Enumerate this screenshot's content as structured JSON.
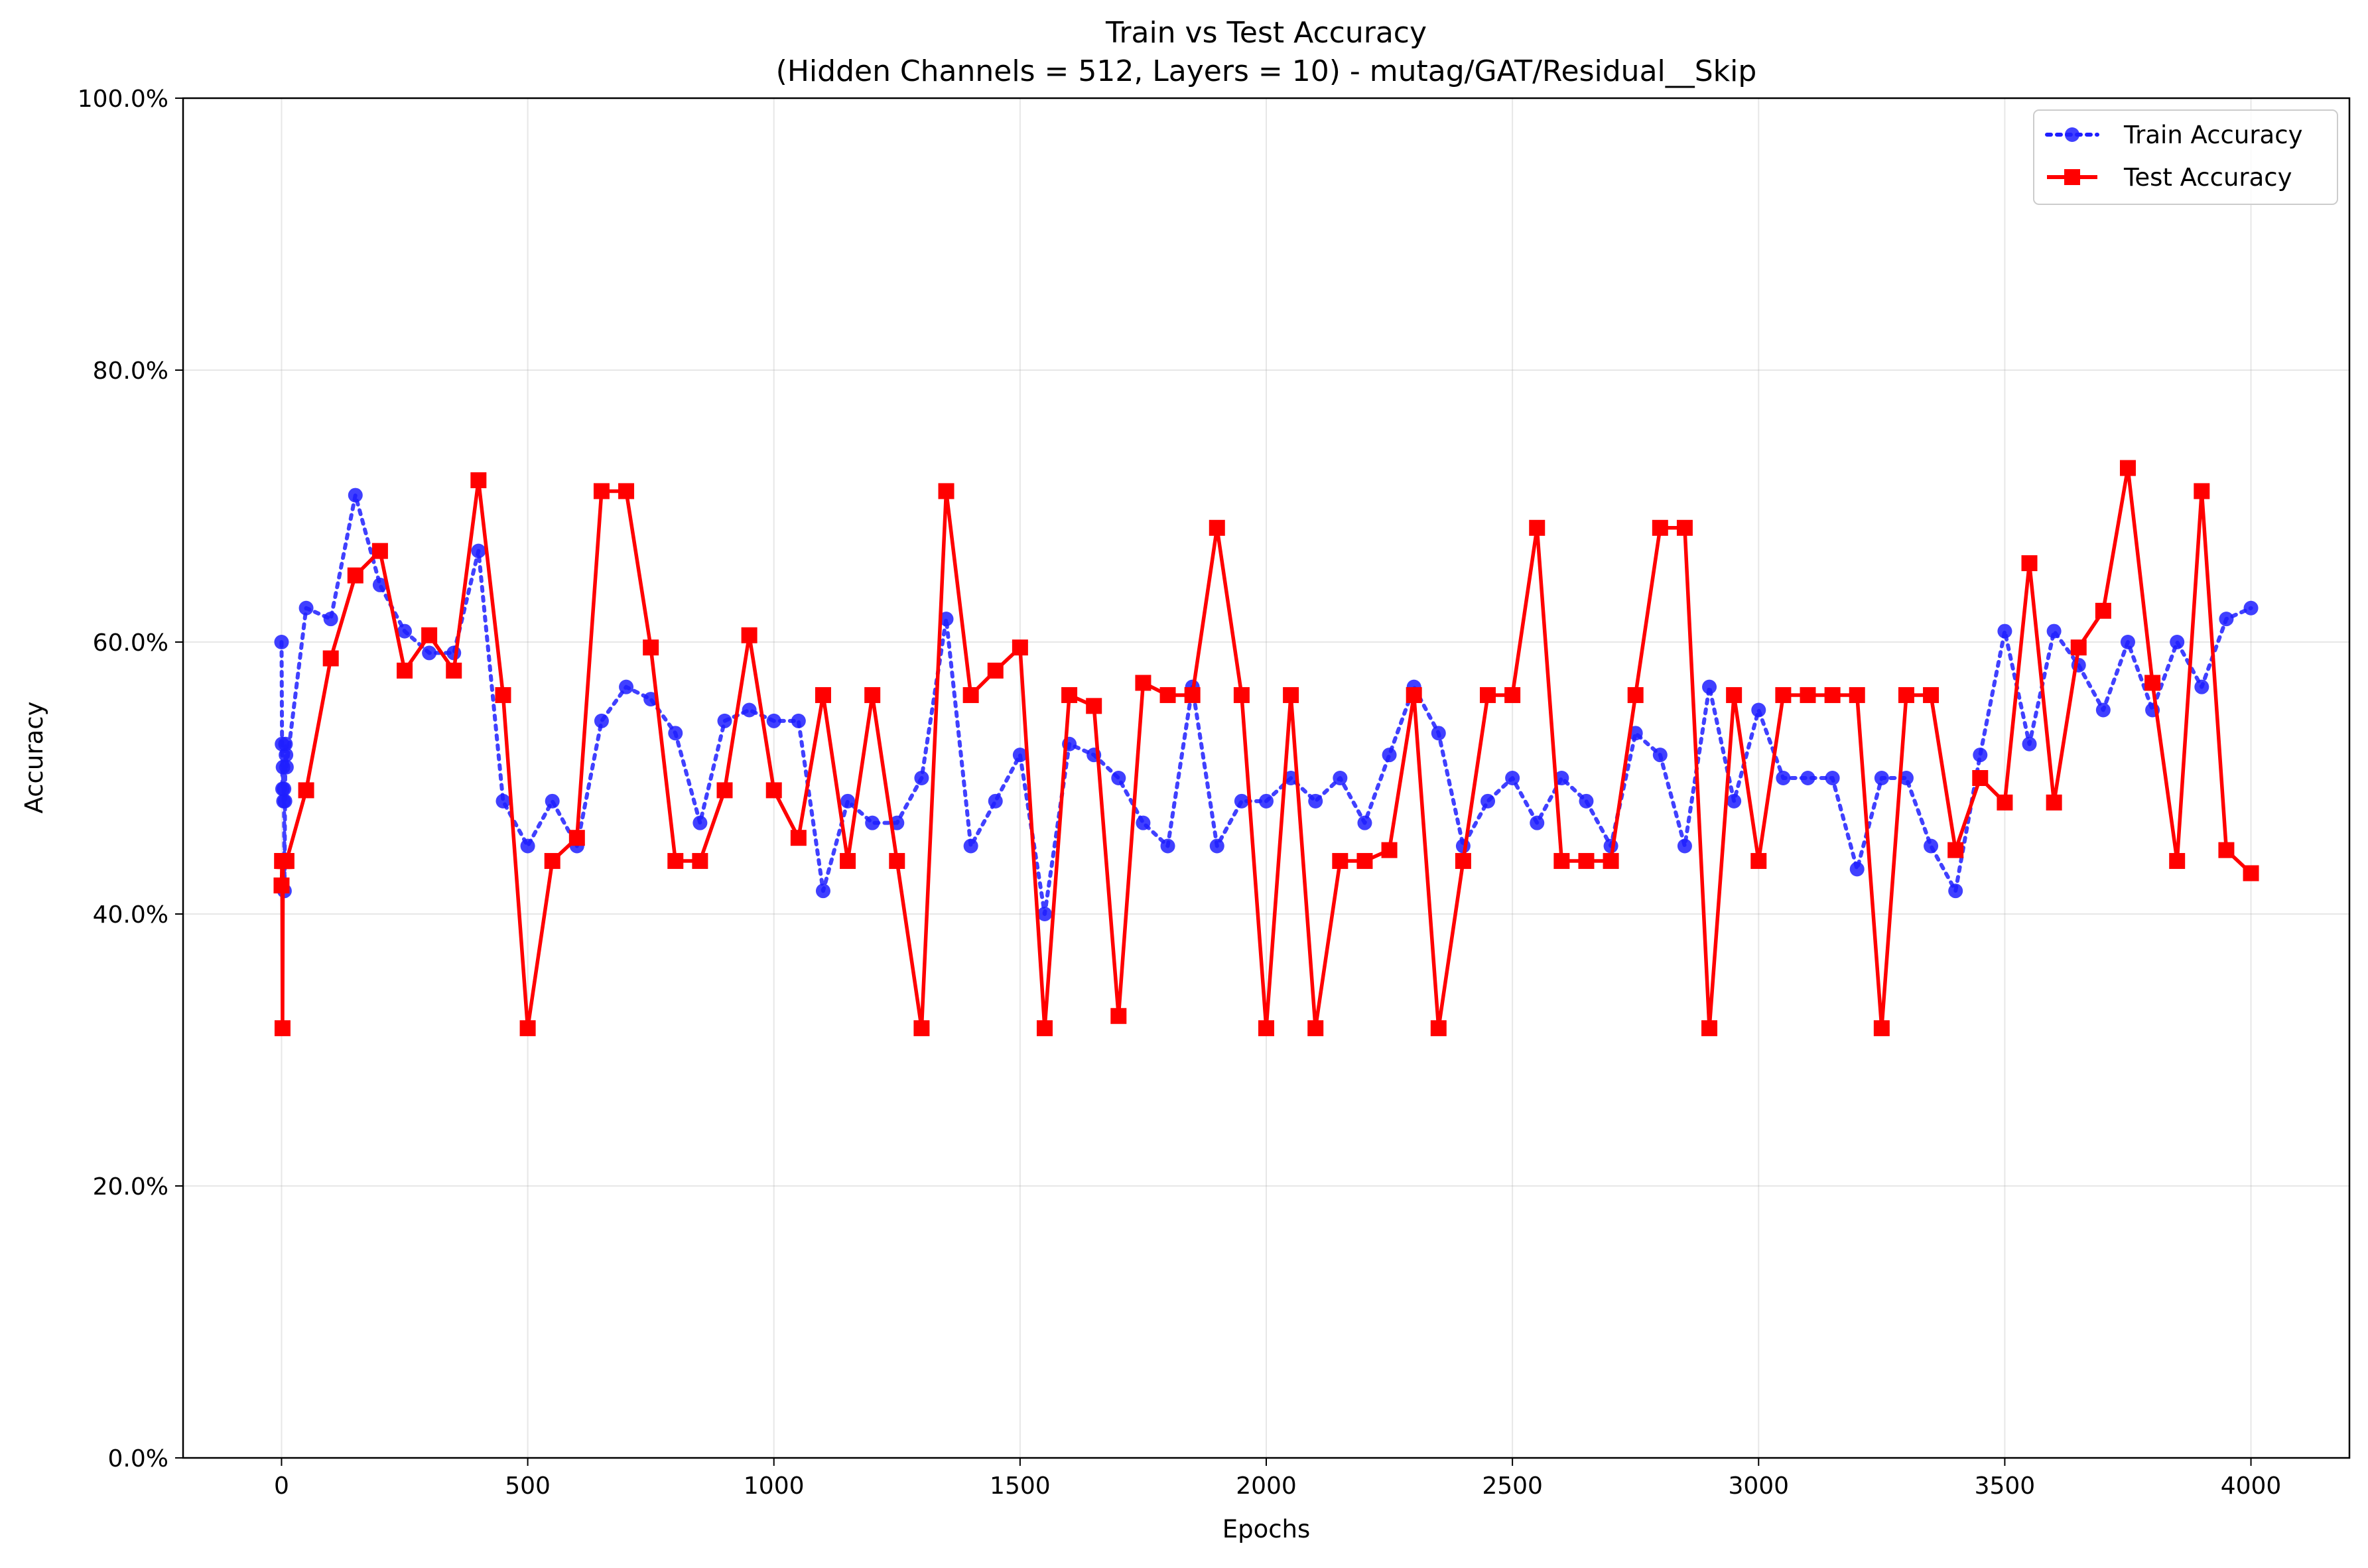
{
  "chart_data": {
    "type": "line",
    "title": "Train vs Test Accuracy",
    "subtitle": "(Hidden Channels = 512, Layers = 10) - mutag/GAT/Residual__Skip",
    "xlabel": "Epochs",
    "ylabel": "Accuracy",
    "xlim": [
      -200,
      4200
    ],
    "ylim": [
      0,
      100
    ],
    "xticks": [
      0,
      500,
      1000,
      1500,
      2000,
      2500,
      3000,
      3500,
      4000
    ],
    "xtick_labels": [
      "0",
      "500",
      "1000",
      "1500",
      "2000",
      "2500",
      "3000",
      "3500",
      "4000"
    ],
    "yticks": [
      0,
      20,
      40,
      60,
      80,
      100
    ],
    "ytick_labels": [
      "0.0%",
      "20.0%",
      "40.0%",
      "60.0%",
      "80.0%",
      "100.0%"
    ],
    "grid": true,
    "legend_position": "top-right",
    "x": [
      0,
      1,
      2,
      3,
      4,
      5,
      6,
      7,
      8,
      9,
      10,
      50,
      100,
      150,
      200,
      250,
      300,
      350,
      400,
      450,
      500,
      550,
      600,
      650,
      700,
      750,
      800,
      850,
      900,
      950,
      1000,
      1050,
      1100,
      1150,
      1200,
      1250,
      1300,
      1350,
      1400,
      1450,
      1500,
      1550,
      1600,
      1650,
      1700,
      1750,
      1800,
      1850,
      1900,
      1950,
      2000,
      2050,
      2100,
      2150,
      2200,
      2250,
      2300,
      2350,
      2400,
      2450,
      2500,
      2550,
      2600,
      2650,
      2700,
      2750,
      2800,
      2850,
      2900,
      2950,
      3000,
      3050,
      3100,
      3150,
      3200,
      3250,
      3300,
      3350,
      3400,
      3450,
      3500,
      3550,
      3600,
      3650,
      3700,
      3750,
      3800,
      3850,
      3900,
      3950,
      4000
    ],
    "series": [
      {
        "name": "Train Accuracy",
        "color": "#1f1fff",
        "line_style": "dotted",
        "marker": "circle",
        "values": [
          60.0,
          52.5,
          49.2,
          50.8,
          48.3,
          49.2,
          41.7,
          48.3,
          52.5,
          51.7,
          50.8,
          62.5,
          61.7,
          70.8,
          64.2,
          60.8,
          59.2,
          59.2,
          66.7,
          48.3,
          45.0,
          48.3,
          45.0,
          54.2,
          56.7,
          55.8,
          53.3,
          46.7,
          54.2,
          55.0,
          54.2,
          54.2,
          41.7,
          48.3,
          46.7,
          46.7,
          50.0,
          61.7,
          45.0,
          48.3,
          51.7,
          40.0,
          52.5,
          51.7,
          50.0,
          46.7,
          45.0,
          56.7,
          45.0,
          48.3,
          48.3,
          50.0,
          48.3,
          50.0,
          46.7,
          51.7,
          56.7,
          53.3,
          45.0,
          48.3,
          50.0,
          46.7,
          50.0,
          48.3,
          45.0,
          53.3,
          51.7,
          45.0,
          56.7,
          48.3,
          55.0,
          50.0,
          50.0,
          50.0,
          43.3,
          50.0,
          50.0,
          45.0,
          41.7,
          51.7,
          60.8,
          52.5,
          60.8,
          58.3,
          55.0,
          60.0,
          55.0,
          60.0,
          56.7,
          61.7,
          62.5
        ]
      },
      {
        "name": "Test Accuracy",
        "color": "#ff0000",
        "line_style": "solid",
        "marker": "square",
        "values": [
          42.1,
          43.9,
          31.6,
          43.9,
          43.9,
          43.9,
          43.9,
          43.9,
          43.9,
          43.9,
          43.9,
          49.1,
          58.8,
          64.9,
          66.7,
          57.9,
          60.5,
          57.9,
          71.9,
          56.1,
          31.6,
          43.9,
          45.6,
          71.1,
          71.1,
          59.6,
          43.9,
          43.9,
          49.1,
          60.5,
          49.1,
          45.6,
          56.1,
          43.9,
          56.1,
          43.9,
          31.6,
          71.1,
          56.1,
          57.9,
          59.6,
          31.6,
          56.1,
          55.3,
          32.5,
          57.0,
          56.1,
          56.1,
          68.4,
          56.1,
          31.6,
          56.1,
          31.6,
          43.9,
          43.9,
          44.7,
          56.1,
          31.6,
          43.9,
          56.1,
          56.1,
          68.4,
          43.9,
          43.9,
          43.9,
          56.1,
          68.4,
          68.4,
          31.6,
          56.1,
          43.9,
          56.1,
          56.1,
          56.1,
          56.1,
          31.6,
          56.1,
          56.1,
          44.7,
          50.0,
          48.2,
          65.8,
          48.2,
          59.6,
          62.3,
          72.8,
          57.0,
          43.9,
          71.1,
          44.7,
          43.0
        ]
      }
    ]
  }
}
